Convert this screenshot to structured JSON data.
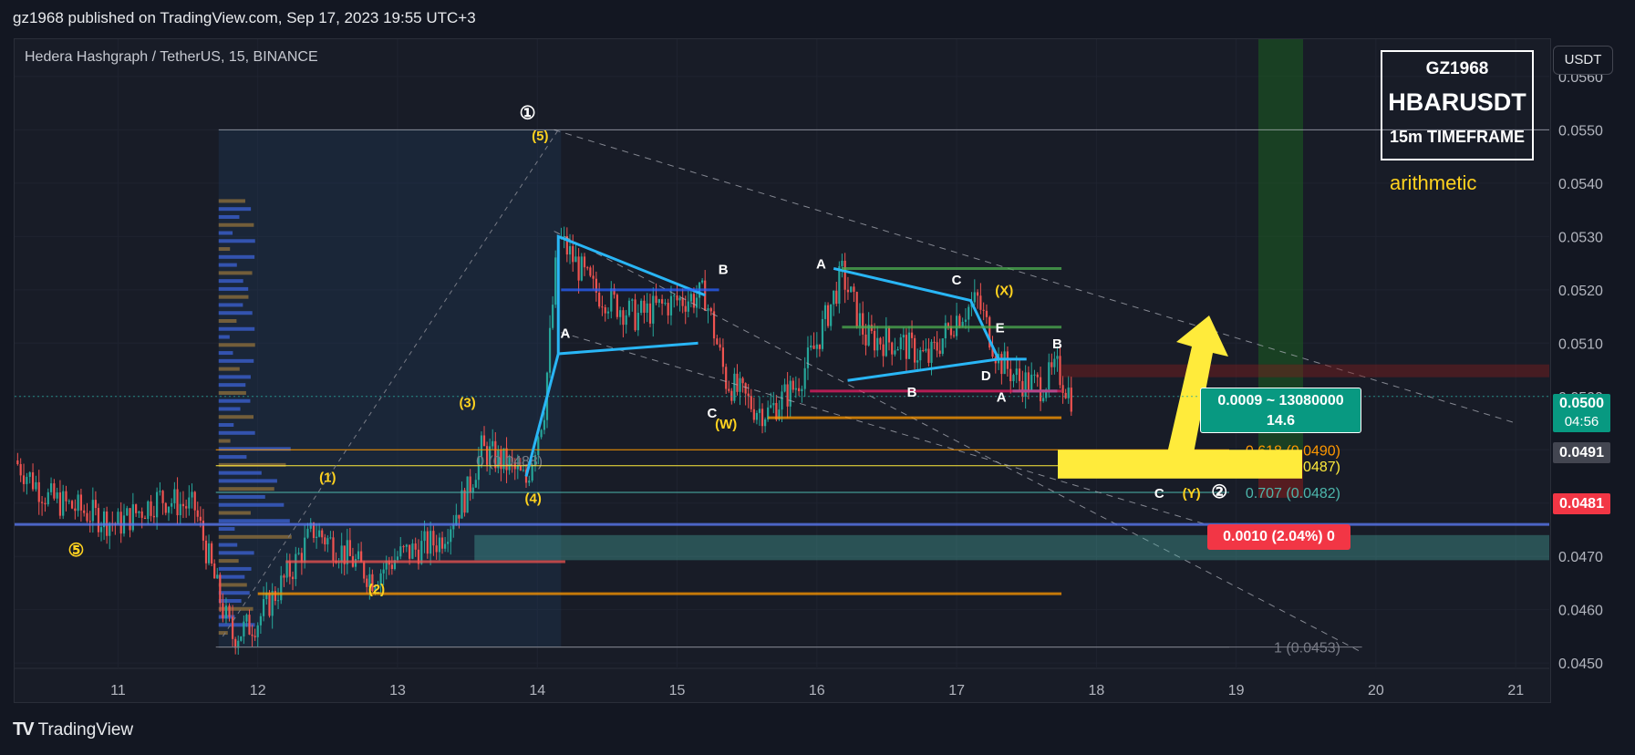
{
  "header": {
    "published": "gz1968 published on TradingView.com, Sep 17, 2023 19:55 UTC+3"
  },
  "symbol_line": "Hedera Hashgraph / TetherUS, 15, BINANCE",
  "currency_button": "USDT",
  "info_box": {
    "user": "GZ1968",
    "ticker": "HBARUSDT",
    "timeframe": "15m TIMEFRAME"
  },
  "scale_note": "arithmetic",
  "footer": {
    "logo": "TV",
    "brand": "TradingView"
  },
  "price_tags": {
    "last": "0.0500",
    "countdown": "04:56",
    "level_a": "0.0491",
    "level_b": "0.0481"
  },
  "position_box": {
    "line1": "0.0009 ~ 13080000",
    "line2": "14.6"
  },
  "stop_box": "0.0010 (2.04%) 0",
  "colors": {
    "bg": "#131722",
    "pane": "#181c27",
    "up": "#26a69a",
    "down": "#ef5350",
    "fib_orange": "#ff9800",
    "fib_yellow": "#ffeb3b",
    "fib_teal": "#4db6ac",
    "wave": "#29b6f6",
    "highlight": "#ffeb3b",
    "green_tag": "#089981",
    "red_tag": "#f23645"
  },
  "chart_data": {
    "type": "candlestick",
    "x_ticks": [
      "11",
      "12",
      "13",
      "14",
      "15",
      "16",
      "17",
      "18",
      "19",
      "20",
      "21"
    ],
    "y_ticks": [
      "0.0560",
      "0.0550",
      "0.0540",
      "0.0530",
      "0.0520",
      "0.0510",
      "0.0500",
      "0.0490",
      "0.0480",
      "0.0470",
      "0.0460",
      "0.0450"
    ],
    "ylim": [
      0.0449,
      0.0567
    ],
    "xlim": [
      10.26,
      21.24
    ],
    "price_path": [
      [
        10.26,
        0.0488
      ],
      [
        10.5,
        0.0481
      ],
      [
        10.8,
        0.0478
      ],
      [
        11.0,
        0.0476
      ],
      [
        11.3,
        0.0481
      ],
      [
        11.55,
        0.0479
      ],
      [
        11.75,
        0.046
      ],
      [
        11.82,
        0.0455
      ],
      [
        12.0,
        0.0458
      ],
      [
        12.25,
        0.0468
      ],
      [
        12.4,
        0.0475
      ],
      [
        12.6,
        0.0471
      ],
      [
        12.82,
        0.0466
      ],
      [
        13.0,
        0.047
      ],
      [
        13.3,
        0.0473
      ],
      [
        13.5,
        0.0482
      ],
      [
        13.6,
        0.049
      ],
      [
        13.8,
        0.0487
      ],
      [
        13.92,
        0.0484
      ],
      [
        14.05,
        0.0498
      ],
      [
        14.15,
        0.053
      ],
      [
        14.4,
        0.052
      ],
      [
        14.7,
        0.0515
      ],
      [
        15.0,
        0.0518
      ],
      [
        15.2,
        0.0519
      ],
      [
        15.35,
        0.0503
      ],
      [
        15.55,
        0.0498
      ],
      [
        15.65,
        0.0497
      ],
      [
        15.85,
        0.0502
      ],
      [
        16.0,
        0.051
      ],
      [
        16.18,
        0.0523
      ],
      [
        16.35,
        0.0511
      ],
      [
        16.6,
        0.051
      ],
      [
        16.8,
        0.0507
      ],
      [
        17.0,
        0.0515
      ],
      [
        17.15,
        0.0518
      ],
      [
        17.3,
        0.0507
      ],
      [
        17.45,
        0.0503
      ],
      [
        17.6,
        0.0502
      ],
      [
        17.72,
        0.0505
      ],
      [
        17.82,
        0.05
      ]
    ],
    "fib_levels": [
      {
        "ratio": "0",
        "price": 0.0488,
        "label": "0 (0.0488)"
      },
      {
        "ratio": "0.618",
        "price": 0.049,
        "label": "0.618 (0.0490)"
      },
      {
        "ratio": "0.65",
        "price": 0.0487,
        "label": "0.65 (0.0487)"
      },
      {
        "ratio": "0.707",
        "price": 0.0482,
        "label": "0.707 (0.0482)"
      },
      {
        "ratio": "1",
        "price": 0.0453,
        "label": "1 (0.0453)"
      }
    ],
    "wave_labels": [
      {
        "text": "①",
        "x": 13.93,
        "y": 0.0552,
        "color": "#ffffff"
      },
      {
        "text": "(5)",
        "x": 14.02,
        "y": 0.0548,
        "color": "#ffd21f"
      },
      {
        "text": "(3)",
        "x": 13.5,
        "y": 0.0498,
        "color": "#ffd21f"
      },
      {
        "text": "(1)",
        "x": 12.5,
        "y": 0.0484,
        "color": "#ffd21f"
      },
      {
        "text": "(4)",
        "x": 13.97,
        "y": 0.048,
        "color": "#ffd21f"
      },
      {
        "text": "(2)",
        "x": 12.85,
        "y": 0.0463,
        "color": "#ffd21f"
      },
      {
        "text": "⑤",
        "x": 10.7,
        "y": 0.047,
        "color": "#ffd21f"
      },
      {
        "text": "A",
        "x": 14.2,
        "y": 0.0511,
        "color": "#ffffff"
      },
      {
        "text": "B",
        "x": 15.33,
        "y": 0.0523,
        "color": "#ffffff"
      },
      {
        "text": "C",
        "x": 15.25,
        "y": 0.0496,
        "color": "#ffffff"
      },
      {
        "text": "(W)",
        "x": 15.35,
        "y": 0.0494,
        "color": "#ffd21f"
      },
      {
        "text": "A",
        "x": 16.03,
        "y": 0.0524,
        "color": "#ffffff"
      },
      {
        "text": "B",
        "x": 16.68,
        "y": 0.05,
        "color": "#ffffff"
      },
      {
        "text": "C",
        "x": 17.0,
        "y": 0.0521,
        "color": "#ffffff"
      },
      {
        "text": "(X)",
        "x": 17.34,
        "y": 0.0519,
        "color": "#ffd21f"
      },
      {
        "text": "E",
        "x": 17.31,
        "y": 0.0512,
        "color": "#ffffff"
      },
      {
        "text": "D",
        "x": 17.21,
        "y": 0.0503,
        "color": "#ffffff"
      },
      {
        "text": "A",
        "x": 17.32,
        "y": 0.0499,
        "color": "#ffffff"
      },
      {
        "text": "B",
        "x": 17.72,
        "y": 0.0509,
        "color": "#ffffff"
      },
      {
        "text": "C",
        "x": 18.45,
        "y": 0.0481,
        "color": "#ffffff"
      },
      {
        "text": "(Y)",
        "x": 18.68,
        "y": 0.0481,
        "color": "#ffd21f"
      },
      {
        "text": "②",
        "x": 18.88,
        "y": 0.0481,
        "color": "#ffffff"
      }
    ]
  }
}
